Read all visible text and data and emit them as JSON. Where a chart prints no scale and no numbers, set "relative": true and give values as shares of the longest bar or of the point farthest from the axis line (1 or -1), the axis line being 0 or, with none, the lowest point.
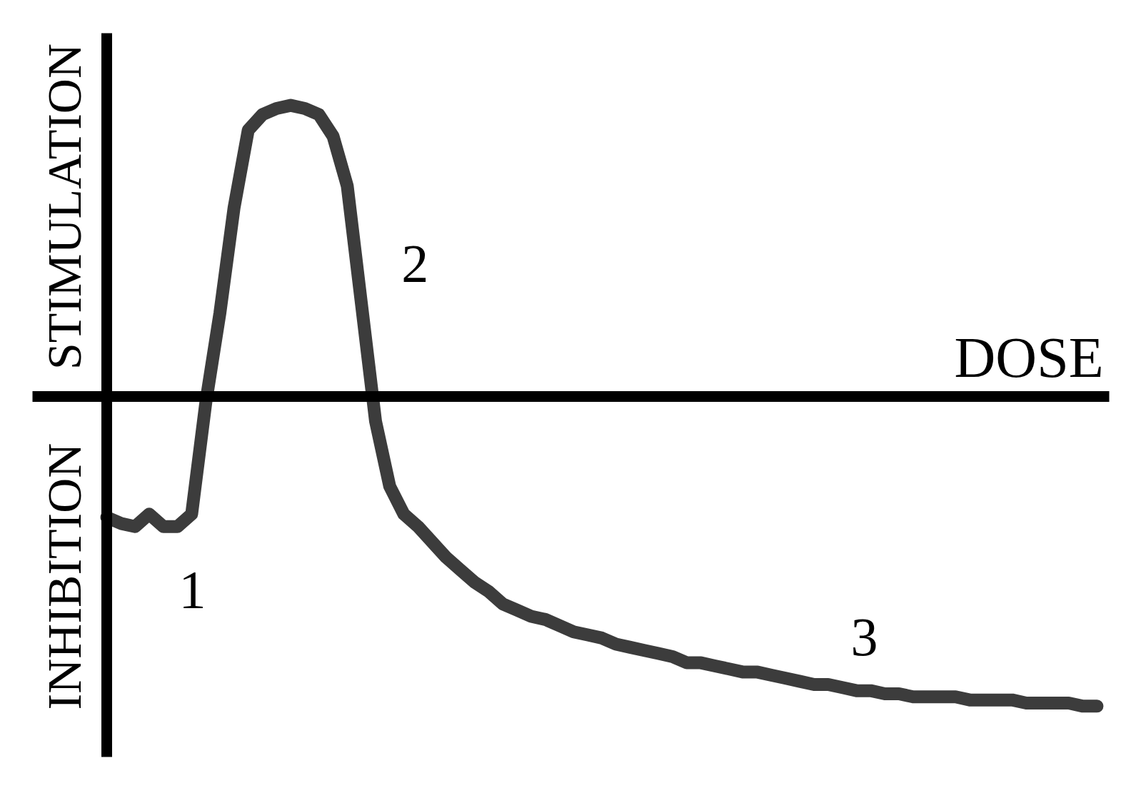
{
  "chart_data": {
    "type": "line",
    "relative": true,
    "xlabel": "DOSE",
    "annotations": [
      "STIMULATION",
      "INHIBITION",
      "1",
      "2",
      "3"
    ],
    "categories": [
      null,
      null,
      null,
      null,
      null,
      null,
      null,
      null,
      null,
      null,
      null,
      null,
      null,
      null,
      null,
      null,
      null,
      null,
      null,
      null,
      null,
      null,
      null,
      null,
      null,
      null,
      null,
      null,
      null,
      null,
      null,
      null,
      null,
      null,
      null,
      null,
      null,
      null,
      null,
      null,
      null,
      null,
      null,
      null,
      null,
      null,
      null,
      null,
      null,
      null,
      null,
      null,
      null,
      null,
      null,
      null,
      null,
      null,
      null,
      null,
      null,
      null,
      null,
      null,
      null,
      null,
      null,
      null,
      null,
      null,
      null
    ],
    "color": "#3c3c3c",
    "line_style": "solid",
    "values": [
      -0.39,
      -0.41,
      -0.42,
      -0.38,
      -0.42,
      -0.42,
      -0.38,
      -0.02,
      0.27,
      0.61,
      0.86,
      0.91,
      0.93,
      0.94,
      0.93,
      0.91,
      0.84,
      0.68,
      0.3,
      -0.08,
      -0.29,
      -0.38,
      -0.42,
      -0.47,
      -0.52,
      -0.56,
      -0.6,
      -0.63,
      -0.67,
      -0.69,
      -0.71,
      -0.72,
      -0.74,
      -0.76,
      -0.77,
      -0.78,
      -0.8,
      -0.81,
      -0.82,
      -0.83,
      -0.84,
      -0.86,
      -0.86,
      -0.87,
      -0.88,
      -0.89,
      -0.89,
      -0.9,
      -0.91,
      -0.92,
      -0.93,
      -0.93,
      -0.94,
      -0.95,
      -0.95,
      -0.96,
      -0.96,
      -0.97,
      -0.97,
      -0.97,
      -0.97,
      -0.98,
      -0.98,
      -0.98,
      -0.98,
      -0.99,
      -0.99,
      -0.99,
      -0.99,
      -1.0,
      -1.0
    ]
  }
}
